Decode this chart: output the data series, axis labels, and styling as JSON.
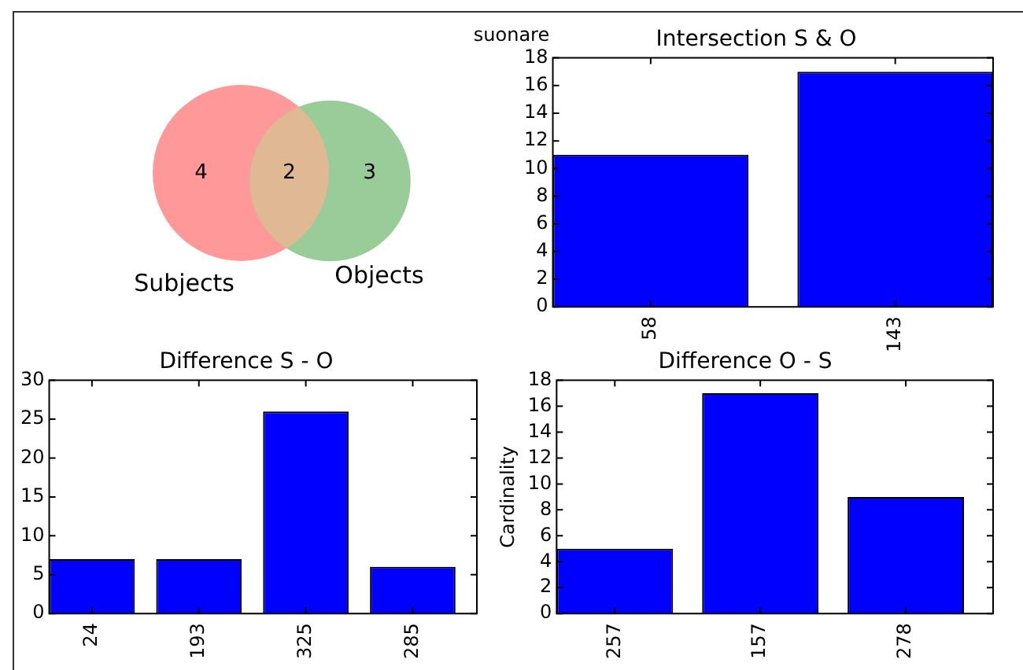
{
  "chart_data": [
    {
      "type": "other",
      "title": "suonare",
      "categories": [
        null,
        null,
        null
      ],
      "values": [
        4,
        2,
        3
      ],
      "data_labels": true,
      "colors": [
        "#ff9999",
        "#dfb894",
        "#99cc99"
      ],
      "annotations": [
        "Subjects",
        "Objects"
      ]
    },
    {
      "type": "bar",
      "title": "Intersection S & O",
      "categories": [
        "58",
        "143"
      ],
      "values": [
        11,
        17
      ],
      "color": "#0000ff",
      "ylim": [
        0,
        18
      ],
      "yticks": [
        0,
        2,
        4,
        6,
        8,
        10,
        12,
        14,
        16,
        18
      ],
      "grid": false,
      "legend": false
    },
    {
      "type": "bar",
      "title": "Difference S - O",
      "categories": [
        "24",
        "193",
        "325",
        "285"
      ],
      "values": [
        7,
        7,
        26,
        6
      ],
      "color": "#0000ff",
      "ylim": [
        0,
        30
      ],
      "yticks": [
        0,
        5,
        10,
        15,
        20,
        25,
        30
      ],
      "grid": false,
      "legend": false
    },
    {
      "type": "bar",
      "title": "Difference O - S",
      "ylabel": "Cardinality",
      "categories": [
        "257",
        "157",
        "278"
      ],
      "values": [
        5,
        17,
        9
      ],
      "color": "#0000ff",
      "ylim": [
        0,
        18
      ],
      "yticks": [
        0,
        2,
        4,
        6,
        8,
        10,
        12,
        14,
        16,
        18
      ],
      "grid": false,
      "legend": false
    }
  ]
}
